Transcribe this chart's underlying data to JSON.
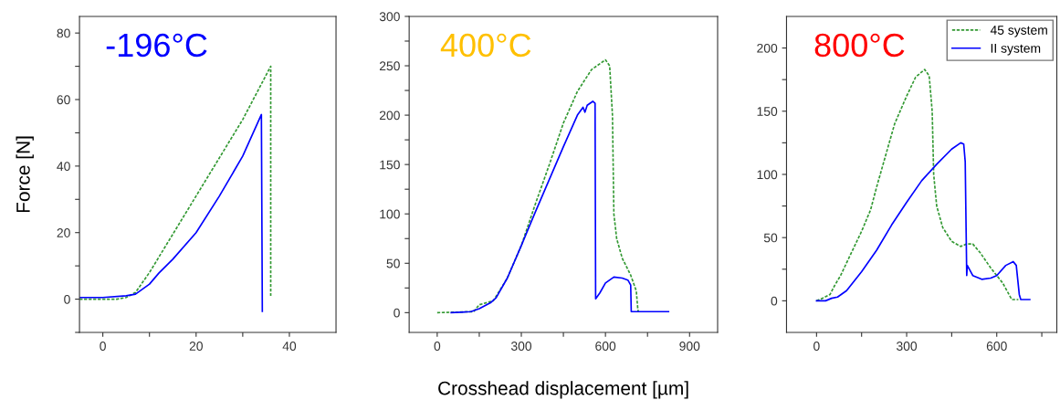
{
  "chart_data": [
    {
      "type": "line",
      "ylabel": "Force [N]",
      "annotations": [
        "-196°C"
      ],
      "legend": false,
      "grid": false,
      "xlim": [
        -5,
        50
      ],
      "ylim": [
        -10,
        85
      ],
      "xticks": [
        0,
        {
          "value": 10,
          "label": null
        },
        20,
        {
          "value": 30,
          "label": null
        },
        40
      ],
      "yticks": [
        {
          "value": -10,
          "label": null
        },
        0,
        {
          "value": 10,
          "label": null
        },
        20,
        {
          "value": 30,
          "label": null
        },
        40,
        {
          "value": 50,
          "label": null
        },
        60,
        {
          "value": 70,
          "label": null
        },
        80
      ],
      "series": [
        {
          "color": "#339933",
          "line_style": "dashed",
          "x": [
            -5,
            0,
            3,
            5,
            7,
            10,
            20,
            30,
            36,
            36
          ],
          "values": [
            0,
            0,
            0,
            0.5,
            2,
            8,
            31,
            54,
            70,
            1
          ]
        },
        {
          "color": "#0000ff",
          "line_style": "solid",
          "x": [
            -5,
            0,
            5,
            7,
            10,
            12,
            15,
            20,
            25,
            30,
            34,
            34.2
          ],
          "values": [
            0.5,
            0.5,
            1,
            1.5,
            4.5,
            7.8,
            12,
            20,
            31,
            43,
            55.5,
            -3.7
          ]
        }
      ]
    },
    {
      "type": "line",
      "xlabel": "Crosshead displacement [µm]",
      "annotations": [
        "400°C"
      ],
      "legend": false,
      "grid": false,
      "xlim": [
        -100,
        1000
      ],
      "ylim": [
        -20,
        300
      ],
      "xticks": [
        0,
        {
          "value": 150,
          "label": null
        },
        300,
        {
          "value": 450,
          "label": null
        },
        600,
        {
          "value": 750,
          "label": null
        },
        900
      ],
      "yticks": [
        0,
        {
          "value": 25,
          "label": null
        },
        50,
        {
          "value": 75,
          "label": null
        },
        100,
        {
          "value": 125,
          "label": null
        },
        150,
        {
          "value": 175,
          "label": null
        },
        200,
        {
          "value": 225,
          "label": null
        },
        250,
        {
          "value": 275,
          "label": null
        },
        300
      ],
      "series": [
        {
          "color": "#339933",
          "line_style": "dashed",
          "x": [
            0,
            130,
            150,
            200,
            250,
            300,
            350,
            400,
            450,
            500,
            550,
            600,
            615,
            625,
            630,
            640,
            660,
            690,
            710,
            715,
            717
          ],
          "values": [
            0,
            1,
            8,
            12,
            35,
            68,
            110,
            150,
            192,
            224,
            246,
            256,
            250,
            200,
            100,
            75,
            55,
            38,
            22,
            5,
            1
          ]
        },
        {
          "color": "#0000ff",
          "line_style": "solid",
          "x": [
            50,
            120,
            150,
            190,
            210,
            250,
            300,
            350,
            400,
            450,
            500,
            520,
            527,
            535,
            555,
            563,
            565,
            580,
            600,
            630,
            660,
            680,
            690,
            692,
            825
          ],
          "values": [
            0,
            1,
            4,
            10,
            15,
            35,
            68,
            102,
            135,
            168,
            200,
            208,
            203,
            210,
            214,
            212,
            14,
            20,
            30,
            36,
            35,
            33,
            28,
            1,
            1
          ]
        }
      ]
    },
    {
      "type": "line",
      "annotations": [
        "800°C"
      ],
      "legend": "top right",
      "grid": false,
      "xlim": [
        -100,
        800
      ],
      "ylim": [
        -25,
        225
      ],
      "xticks": [
        0,
        {
          "value": 150,
          "label": null
        },
        300,
        {
          "value": 450,
          "label": null
        },
        600,
        {
          "value": 750,
          "label": null
        }
      ],
      "yticks": [
        0,
        {
          "value": 25,
          "label": null
        },
        50,
        {
          "value": 75,
          "label": null
        },
        100,
        {
          "value": 125,
          "label": null
        },
        150,
        {
          "value": 175,
          "label": null
        },
        200
      ],
      "series": [
        {
          "name": "45 system",
          "color": "#339933",
          "line_style": "dashed",
          "x": [
            0,
            20,
            45,
            60,
            80,
            100,
            130,
            150,
            180,
            200,
            230,
            260,
            300,
            330,
            360,
            375,
            385,
            390,
            400,
            420,
            450,
            480,
            500,
            520,
            545,
            580,
            620,
            650,
            672
          ],
          "values": [
            0,
            2,
            5,
            12,
            20,
            30,
            45,
            55,
            72,
            90,
            115,
            140,
            162,
            177,
            183,
            178,
            150,
            100,
            75,
            58,
            47,
            43,
            45,
            45,
            38,
            26,
            14,
            1,
            1
          ]
        },
        {
          "name": "II system",
          "color": "#0000ff",
          "line_style": "solid",
          "x": [
            0,
            30,
            50,
            70,
            100,
            150,
            200,
            250,
            300,
            350,
            400,
            450,
            480,
            490,
            495,
            500,
            502,
            520,
            550,
            580,
            600,
            630,
            655,
            665,
            675,
            680,
            710
          ],
          "values": [
            0,
            0,
            2,
            3,
            8,
            23,
            40,
            60,
            78,
            95,
            108,
            120,
            125,
            124,
            110,
            20,
            28,
            20,
            17,
            18,
            20,
            28,
            31,
            28,
            5,
            1,
            1
          ]
        }
      ]
    }
  ]
}
